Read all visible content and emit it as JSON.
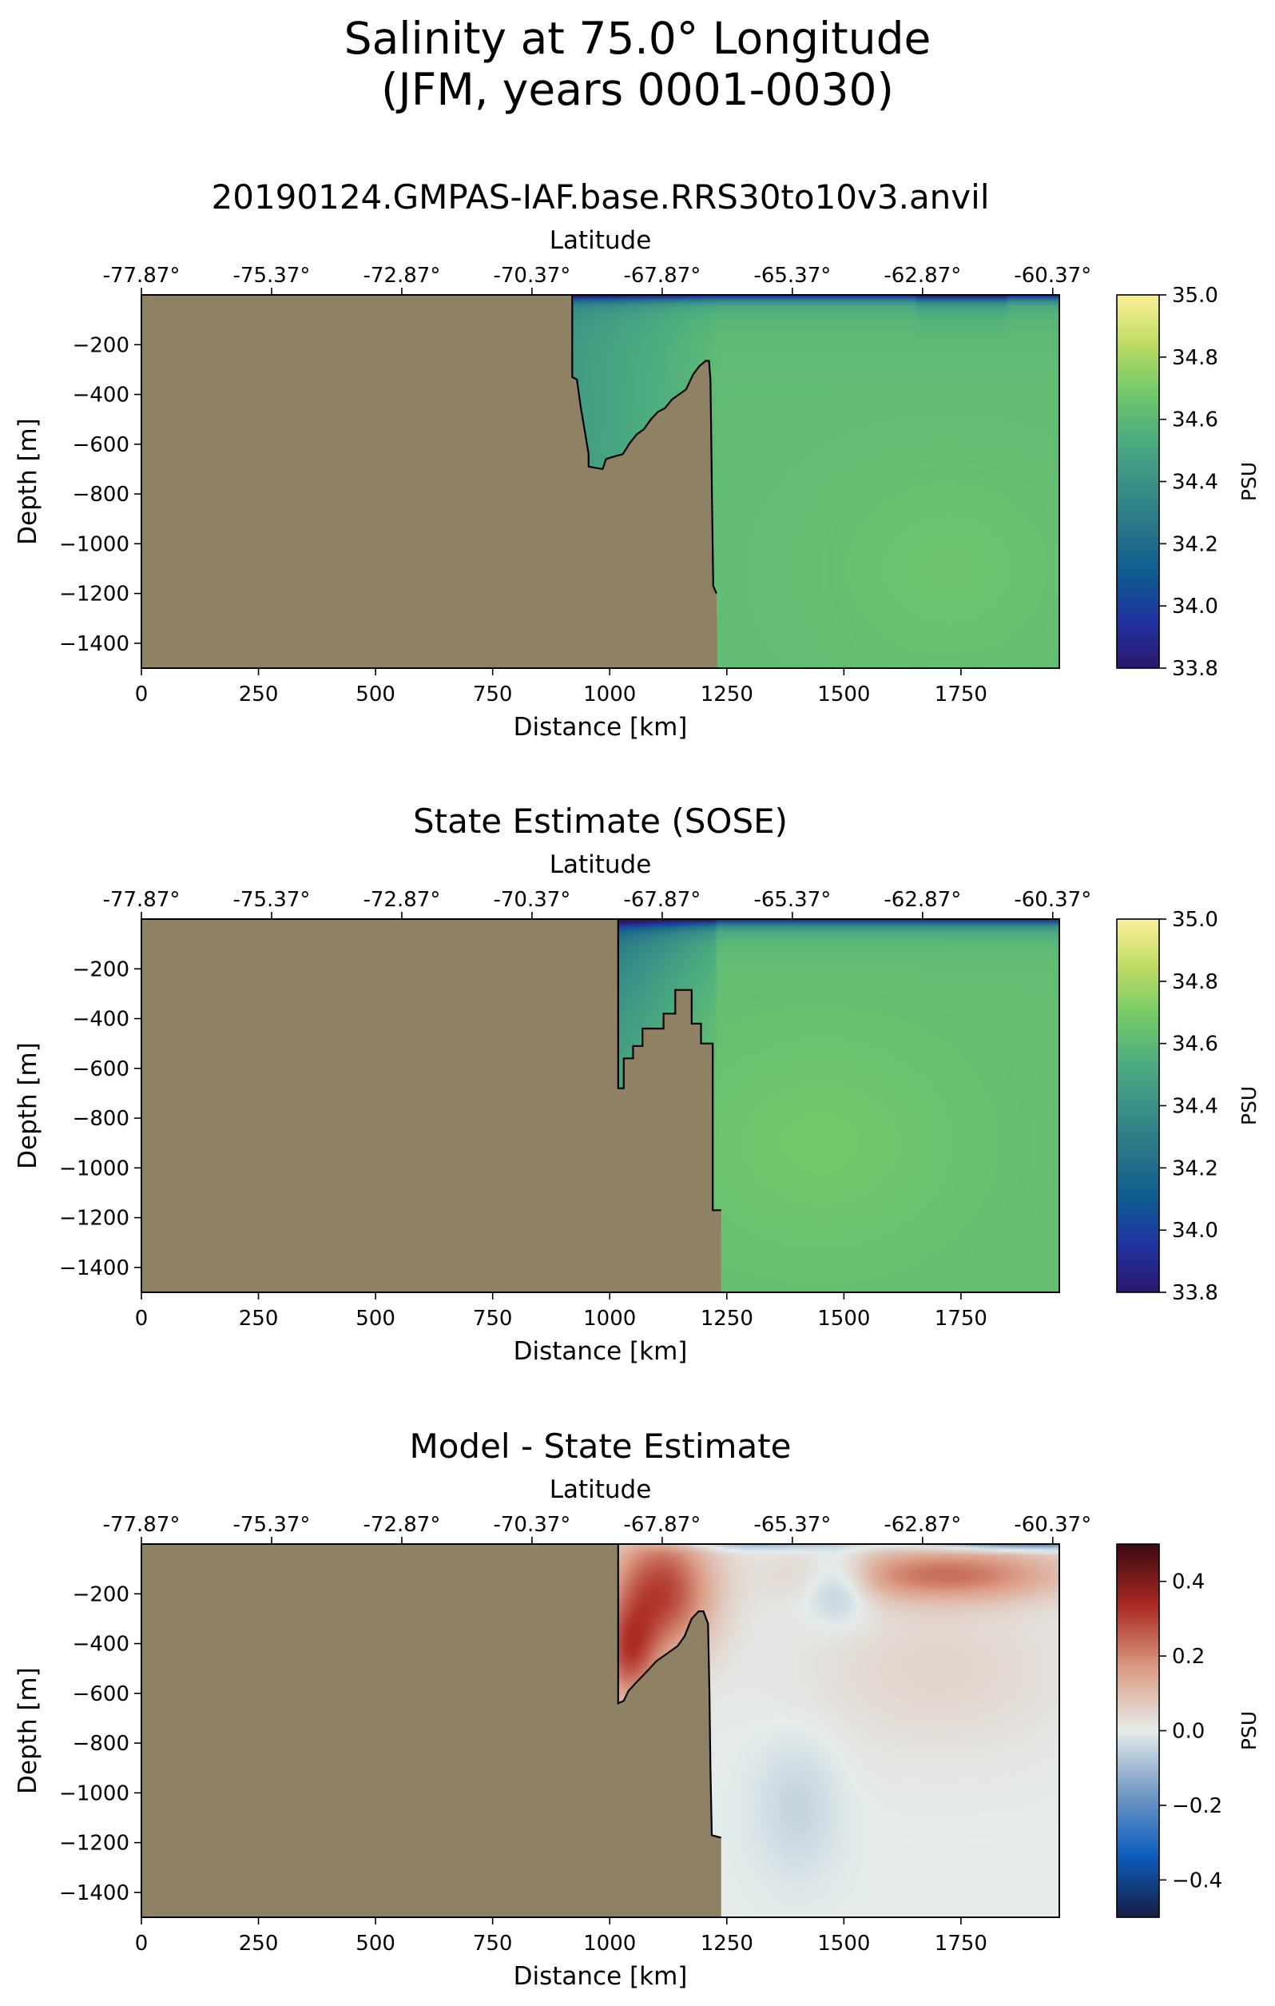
{
  "figure": {
    "title_line1": "Salinity at 75.0° Longitude",
    "title_line2": "(JFM, years 0001-0030)"
  },
  "chart_data": [
    {
      "type": "heatmap",
      "title": "20190124.GMPAS-IAF.base.RRS30to10v3.anvil",
      "xlabel": "Distance [km]",
      "ylabel": "Depth [m]",
      "top_xlabel": "Latitude",
      "colorbar_label": "PSU",
      "xlim": [
        0,
        1960
      ],
      "ylim": [
        -1500,
        0
      ],
      "x_ticks": [
        0,
        250,
        500,
        750,
        1000,
        1250,
        1500,
        1750
      ],
      "y_ticks": [
        -200,
        -400,
        -600,
        -800,
        -1000,
        -1200,
        -1400
      ],
      "top_ticks": [
        {
          "x": 0,
          "label": "-77.87°"
        },
        {
          "x": 278,
          "label": "-75.37°"
        },
        {
          "x": 556,
          "label": "-72.87°"
        },
        {
          "x": 834,
          "label": "-70.37°"
        },
        {
          "x": 1112,
          "label": "-67.87°"
        },
        {
          "x": 1390,
          "label": "-65.37°"
        },
        {
          "x": 1668,
          "label": "-62.87°"
        },
        {
          "x": 1946,
          "label": "-60.37°"
        }
      ],
      "colorbar": {
        "min": 33.8,
        "max": 35.0,
        "ticks": [
          35.0,
          34.8,
          34.6,
          34.4,
          34.2,
          34.0,
          33.8
        ],
        "colormap": "haline"
      },
      "field": "model",
      "bathymetry": [
        [
          0,
          -1500
        ],
        [
          0,
          0
        ],
        [
          920,
          0
        ],
        [
          920,
          -330
        ],
        [
          930,
          -340
        ],
        [
          938,
          -450
        ],
        [
          948,
          -560
        ],
        [
          955,
          -640
        ],
        [
          955,
          -690
        ],
        [
          985,
          -700
        ],
        [
          992,
          -660
        ],
        [
          1008,
          -650
        ],
        [
          1028,
          -640
        ],
        [
          1043,
          -595
        ],
        [
          1058,
          -560
        ],
        [
          1073,
          -540
        ],
        [
          1088,
          -500
        ],
        [
          1103,
          -470
        ],
        [
          1118,
          -455
        ],
        [
          1133,
          -420
        ],
        [
          1148,
          -400
        ],
        [
          1163,
          -380
        ],
        [
          1178,
          -320
        ],
        [
          1192,
          -285
        ],
        [
          1205,
          -265
        ],
        [
          1212,
          -265
        ],
        [
          1215,
          -340
        ],
        [
          1217,
          -600
        ],
        [
          1219,
          -900
        ],
        [
          1221,
          -1170
        ],
        [
          1228,
          -1200
        ],
        [
          1230,
          -1500
        ]
      ]
    },
    {
      "type": "heatmap",
      "title": "State Estimate (SOSE)",
      "xlabel": "Distance [km]",
      "ylabel": "Depth [m]",
      "top_xlabel": "Latitude",
      "colorbar_label": "PSU",
      "xlim": [
        0,
        1960
      ],
      "ylim": [
        -1500,
        0
      ],
      "x_ticks": [
        0,
        250,
        500,
        750,
        1000,
        1250,
        1500,
        1750
      ],
      "y_ticks": [
        -200,
        -400,
        -600,
        -800,
        -1000,
        -1200,
        -1400
      ],
      "top_ticks": [
        {
          "x": 0,
          "label": "-77.87°"
        },
        {
          "x": 278,
          "label": "-75.37°"
        },
        {
          "x": 556,
          "label": "-72.87°"
        },
        {
          "x": 834,
          "label": "-70.37°"
        },
        {
          "x": 1112,
          "label": "-67.87°"
        },
        {
          "x": 1390,
          "label": "-65.37°"
        },
        {
          "x": 1668,
          "label": "-62.87°"
        },
        {
          "x": 1946,
          "label": "-60.37°"
        }
      ],
      "colorbar": {
        "min": 33.8,
        "max": 35.0,
        "ticks": [
          35.0,
          34.8,
          34.6,
          34.4,
          34.2,
          34.0,
          33.8
        ],
        "colormap": "haline"
      },
      "field": "sose",
      "bathymetry": [
        [
          0,
          -1500
        ],
        [
          0,
          0
        ],
        [
          1018,
          0
        ],
        [
          1018,
          -680
        ],
        [
          1030,
          -680
        ],
        [
          1030,
          -560
        ],
        [
          1050,
          -560
        ],
        [
          1050,
          -510
        ],
        [
          1070,
          -510
        ],
        [
          1070,
          -440
        ],
        [
          1115,
          -440
        ],
        [
          1115,
          -380
        ],
        [
          1140,
          -380
        ],
        [
          1140,
          -285
        ],
        [
          1175,
          -285
        ],
        [
          1175,
          -420
        ],
        [
          1195,
          -420
        ],
        [
          1195,
          -500
        ],
        [
          1220,
          -500
        ],
        [
          1220,
          -1170
        ],
        [
          1238,
          -1170
        ],
        [
          1238,
          -1500
        ]
      ]
    },
    {
      "type": "heatmap",
      "title": "Model - State Estimate",
      "xlabel": "Distance [km]",
      "ylabel": "Depth [m]",
      "top_xlabel": "Latitude",
      "colorbar_label": "PSU",
      "xlim": [
        0,
        1960
      ],
      "ylim": [
        -1500,
        0
      ],
      "x_ticks": [
        0,
        250,
        500,
        750,
        1000,
        1250,
        1500,
        1750
      ],
      "y_ticks": [
        -200,
        -400,
        -600,
        -800,
        -1000,
        -1200,
        -1400
      ],
      "top_ticks": [
        {
          "x": 0,
          "label": "-77.87°"
        },
        {
          "x": 278,
          "label": "-75.37°"
        },
        {
          "x": 556,
          "label": "-72.87°"
        },
        {
          "x": 834,
          "label": "-70.37°"
        },
        {
          "x": 1112,
          "label": "-67.87°"
        },
        {
          "x": 1390,
          "label": "-65.37°"
        },
        {
          "x": 1668,
          "label": "-62.87°"
        },
        {
          "x": 1946,
          "label": "-60.37°"
        }
      ],
      "colorbar": {
        "min": -0.5,
        "max": 0.5,
        "ticks": [
          0.4,
          0.2,
          0.0,
          -0.2,
          -0.4
        ],
        "colormap": "balance"
      },
      "field": "diff",
      "bathymetry": [
        [
          0,
          -1500
        ],
        [
          0,
          0
        ],
        [
          1018,
          0
        ],
        [
          1018,
          -640
        ],
        [
          1030,
          -630
        ],
        [
          1040,
          -590
        ],
        [
          1055,
          -560
        ],
        [
          1070,
          -530
        ],
        [
          1085,
          -500
        ],
        [
          1100,
          -470
        ],
        [
          1115,
          -450
        ],
        [
          1130,
          -430
        ],
        [
          1145,
          -410
        ],
        [
          1160,
          -370
        ],
        [
          1175,
          -300
        ],
        [
          1190,
          -270
        ],
        [
          1200,
          -270
        ],
        [
          1210,
          -320
        ],
        [
          1213,
          -600
        ],
        [
          1215,
          -900
        ],
        [
          1218,
          -1170
        ],
        [
          1238,
          -1180
        ],
        [
          1238,
          -1500
        ]
      ]
    }
  ]
}
